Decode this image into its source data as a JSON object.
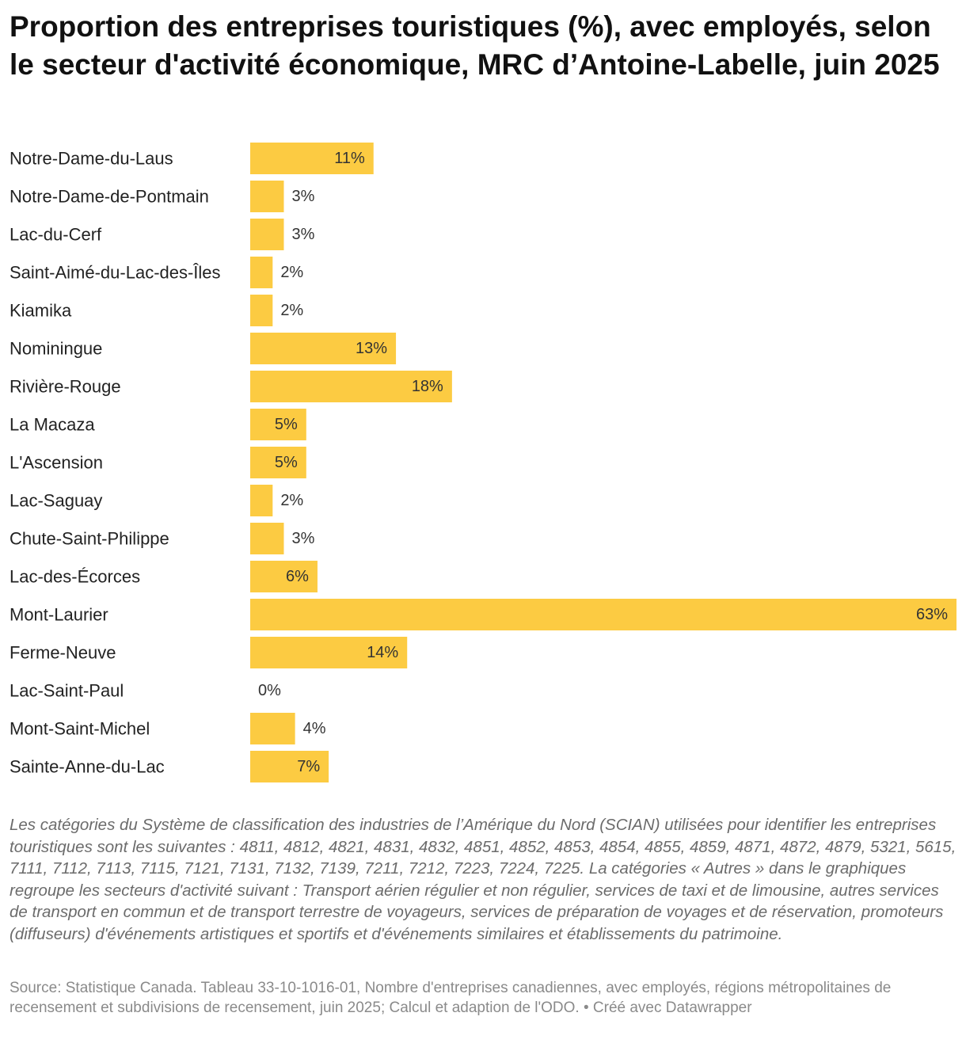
{
  "title": "Proportion des entreprises touristiques (%), avec employés, selon le secteur d'activité économique, MRC d’Antoine-Labelle, juin 2025",
  "notes": "Les catégories du Système de classification des industries de l’Amérique du Nord (SCIAN) utilisées pour identifier les entreprises touristiques sont les suivantes : 4811, 4812, 4821, 4831, 4832, 4851, 4852, 4853, 4854, 4855, 4859, 4871, 4872, 4879, 5321, 5615, 7111, 7112, 7113, 7115, 7121, 7131, 7132, 7139, 7211, 7212, 7223, 7224, 7225. La catégories « Autres » dans le graphiques regroupe les secteurs d'activité suivant : Transport aérien régulier et non régulier, services de taxi et de limousine, autres services de transport en commun et de transport terrestre de voyageurs, services de préparation de voyages et de réservation, promoteurs (diffuseurs) d'événements artistiques et sportifs et d'événements similaires et établissements du patrimoine.",
  "source": "Source: Statistique Canada. Tableau 33-10-1016-01, Nombre d'entreprises canadiennes, avec employés, régions métropolitaines de recensement et subdivisions de recensement, juin 2025; Calcul et adaption de l'ODO. • Créé avec Datawrapper",
  "colors": {
    "bar": "#fccb42",
    "text": "#222222",
    "muted": "#8a8a8a"
  },
  "chart_data": {
    "type": "bar",
    "orientation": "horizontal",
    "title": "Proportion des entreprises touristiques (%), avec employés, selon le secteur d'activité économique, MRC d’Antoine-Labelle, juin 2025",
    "value_suffix": "%",
    "xlim": [
      0,
      63
    ],
    "grid": false,
    "categories": [
      "Notre-Dame-du-Laus",
      "Notre-Dame-de-Pontmain",
      "Lac-du-Cerf",
      "Saint-Aimé-du-Lac-des-Îles",
      "Kiamika",
      "Nominingue",
      "Rivière-Rouge",
      "La Macaza",
      "L'Ascension",
      "Lac-Saguay",
      "Chute-Saint-Philippe",
      "Lac-des-Écorces",
      "Mont-Laurier",
      "Ferme-Neuve",
      "Lac-Saint-Paul",
      "Mont-Saint-Michel",
      "Sainte-Anne-du-Lac"
    ],
    "values": [
      11,
      3,
      3,
      2,
      2,
      13,
      18,
      5,
      5,
      2,
      3,
      6,
      63,
      14,
      0,
      4,
      7
    ],
    "labels": [
      "11%",
      "3%",
      "3%",
      "2%",
      "2%",
      "13%",
      "18%",
      "5%",
      "5%",
      "2%",
      "3%",
      "6%",
      "63%",
      "14%",
      "0%",
      "4%",
      "7%"
    ]
  }
}
